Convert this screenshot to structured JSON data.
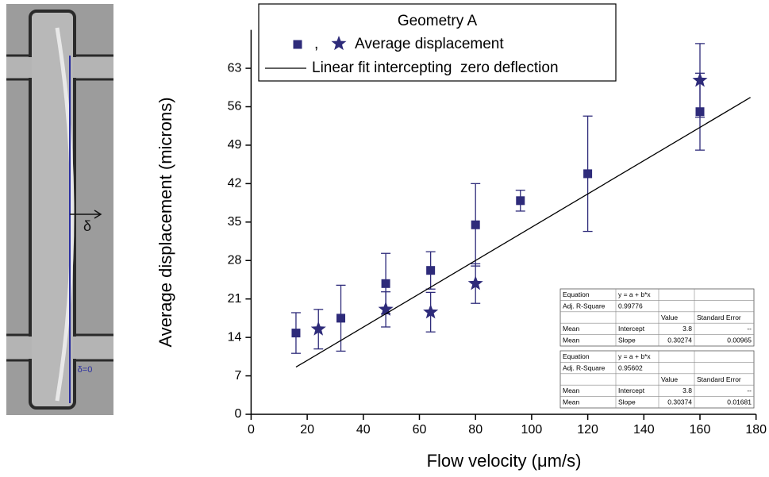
{
  "image_labels": {
    "shift": "δ",
    "origin": "δ=0"
  },
  "chart_data": {
    "type": "scatter",
    "legend_title": "Geometry A",
    "legend_separator": ",",
    "xlabel": "Flow velocity (μm/s)",
    "ylabel": "Average displacement (microns)",
    "xlim": [
      0,
      180
    ],
    "xticks": [
      0,
      20,
      40,
      60,
      80,
      100,
      120,
      140,
      160,
      180
    ],
    "ylim": [
      0,
      70
    ],
    "yticks": [
      0,
      7,
      14,
      21,
      28,
      35,
      42,
      49,
      56,
      63
    ],
    "series": [
      {
        "name": "Average displacement",
        "color": "#2e2b7a",
        "marker": "square",
        "x": [
          16,
          32,
          48,
          64,
          80,
          96,
          120,
          160
        ],
        "values": [
          14.8,
          17.5,
          23.8,
          26.2,
          34.5,
          38.9,
          43.8,
          55.1
        ],
        "errors": [
          3.7,
          6,
          5.5,
          3.4,
          7.5,
          1.9,
          10.5,
          7
        ]
      },
      {
        "color": "#2e2b7a",
        "marker": "star",
        "x": [
          24,
          48,
          64,
          80,
          160
        ],
        "values": [
          15.5,
          19.1,
          18.6,
          23.8,
          60.8
        ],
        "errors": [
          3.6,
          3.2,
          3.6,
          3.6,
          6.7
        ]
      },
      {
        "name": "Linear fit intercepting  zero deflection",
        "color": "#000000",
        "marker": "none",
        "line": true,
        "x": [
          16,
          178
        ],
        "values": [
          8.6,
          57.7
        ]
      }
    ],
    "fit_tables": [
      {
        "rows": [
          [
            "Equation",
            "y = a + b*x",
            null,
            null
          ],
          [
            "Adj. R-Square",
            "0.99776",
            null,
            null
          ],
          [
            null,
            null,
            "Value",
            "Standard Error"
          ],
          [
            "Mean",
            "Intercept",
            "3.8",
            "--"
          ],
          [
            "Mean",
            "Slope",
            "0.30274",
            "0.00965"
          ]
        ]
      },
      {
        "rows": [
          [
            "Equation",
            "y = a + b*x",
            null,
            null
          ],
          [
            "Adj. R-Square",
            "0.95602",
            null,
            null
          ],
          [
            null,
            null,
            "Value",
            "Standard Error"
          ],
          [
            "Mean",
            "Intercept",
            "3.8",
            "--"
          ],
          [
            "Mean",
            "Slope",
            "0.30374",
            "0.01681"
          ]
        ]
      }
    ]
  }
}
